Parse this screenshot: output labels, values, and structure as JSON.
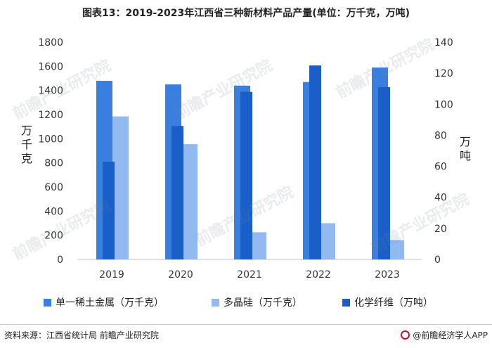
{
  "title": "图表13：2019-2023年江西省三种新材料产品产量(单位：万千克，万吨)",
  "chart_data": {
    "type": "bar",
    "categories": [
      "2019",
      "2020",
      "2021",
      "2022",
      "2023"
    ],
    "series": [
      {
        "name": "单一稀土金属（万千克）",
        "axis": "left",
        "color": "#3a7fe0",
        "values": [
          1480,
          1450,
          1440,
          1470,
          1590
        ]
      },
      {
        "name": "多晶硅（万千克）",
        "axis": "left",
        "color": "#92b9f0",
        "values": [
          1185,
          955,
          225,
          300,
          160
        ]
      },
      {
        "name": "化学纤维（万吨）",
        "axis": "right",
        "color": "#1a5fc8",
        "values": [
          63,
          86,
          108,
          125,
          111
        ]
      }
    ],
    "ylabel_left": "万千克",
    "ylabel_right": "万吨",
    "ylim_left": [
      0,
      1800
    ],
    "ylim_right": [
      0,
      140
    ],
    "yticks_left": [
      "0",
      "200",
      "400",
      "600",
      "800",
      "1000",
      "1200",
      "1400",
      "1600",
      "1800"
    ],
    "yticks_right": [
      "0",
      "20",
      "40",
      "60",
      "80",
      "100",
      "120",
      "140"
    ],
    "grid": false,
    "legend_position": "bottom"
  },
  "legend": {
    "items": [
      {
        "label": "单一稀土金属（万千克）",
        "color": "#3a7fe0"
      },
      {
        "label": "多晶硅（万千克）",
        "color": "#92b9f0"
      },
      {
        "label": "化学纤维（万吨）",
        "color": "#1a5fc8"
      }
    ]
  },
  "footer": {
    "source": "资料来源：江西省统计局 前瞻产业研究院",
    "brand": "@前瞻经济学人APP"
  },
  "watermark": "前瞻产业研究院"
}
